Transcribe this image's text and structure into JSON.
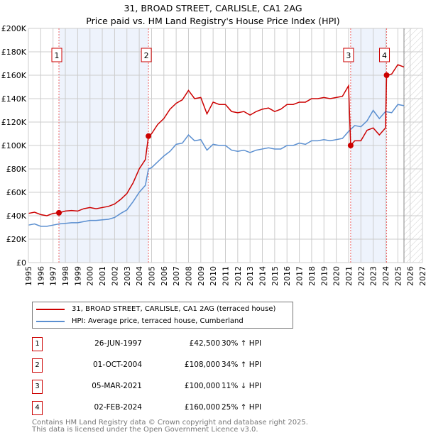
{
  "title": "31, BROAD STREET, CARLISLE, CA1 2AG",
  "subtitle": "Price paid vs. HM Land Registry's House Price Index (HPI)",
  "chart_data": {
    "type": "line",
    "ylim": [
      0,
      200000
    ],
    "xlim": [
      1995,
      2027
    ],
    "yticks": [
      "£0",
      "£20K",
      "£40K",
      "£60K",
      "£80K",
      "£100K",
      "£120K",
      "£140K",
      "£160K",
      "£180K",
      "£200K"
    ],
    "xticks": [
      "1995",
      "1996",
      "1997",
      "1998",
      "1999",
      "2000",
      "2001",
      "2002",
      "2003",
      "2004",
      "2005",
      "2006",
      "2007",
      "2008",
      "2009",
      "2010",
      "2011",
      "2012",
      "2013",
      "2014",
      "2015",
      "2016",
      "2017",
      "2018",
      "2019",
      "2020",
      "2021",
      "2022",
      "2023",
      "2024",
      "2025",
      "2026",
      "2027"
    ],
    "forecast_start": 2025.5,
    "shaded_ranges": [
      [
        1997.48,
        2004.75
      ],
      [
        2021.17,
        2024.09
      ]
    ],
    "series": [
      {
        "name": "31, BROAD STREET, CARLISLE, CA1 2AG (terraced house)",
        "color": "#cc0000",
        "points": [
          [
            1995,
            42
          ],
          [
            1995.5,
            43
          ],
          [
            1996,
            41
          ],
          [
            1996.5,
            40
          ],
          [
            1997,
            42
          ],
          [
            1997.48,
            42.5
          ],
          [
            1998,
            44
          ],
          [
            1998.5,
            44.5
          ],
          [
            1999,
            44
          ],
          [
            1999.5,
            46
          ],
          [
            2000,
            47
          ],
          [
            2000.5,
            46
          ],
          [
            2001,
            47
          ],
          [
            2001.5,
            48
          ],
          [
            2002,
            50
          ],
          [
            2002.5,
            54
          ],
          [
            2003,
            59
          ],
          [
            2003.5,
            68
          ],
          [
            2004,
            80
          ],
          [
            2004.5,
            88
          ],
          [
            2004.75,
            108
          ],
          [
            2005,
            110
          ],
          [
            2005.5,
            118
          ],
          [
            2006,
            123
          ],
          [
            2006.5,
            131
          ],
          [
            2007,
            136
          ],
          [
            2007.5,
            139
          ],
          [
            2008,
            147
          ],
          [
            2008.5,
            140
          ],
          [
            2009,
            141
          ],
          [
            2009.5,
            127
          ],
          [
            2010,
            137
          ],
          [
            2010.5,
            135
          ],
          [
            2011,
            135
          ],
          [
            2011.5,
            129
          ],
          [
            2012,
            128
          ],
          [
            2012.5,
            129
          ],
          [
            2013,
            126
          ],
          [
            2013.5,
            129
          ],
          [
            2014,
            131
          ],
          [
            2014.5,
            132
          ],
          [
            2015,
            129
          ],
          [
            2015.5,
            131
          ],
          [
            2016,
            135
          ],
          [
            2016.5,
            135
          ],
          [
            2017,
            137
          ],
          [
            2017.5,
            137
          ],
          [
            2018,
            140
          ],
          [
            2018.5,
            140
          ],
          [
            2019,
            141
          ],
          [
            2019.5,
            140
          ],
          [
            2020,
            141
          ],
          [
            2020.5,
            142
          ],
          [
            2021,
            151
          ],
          [
            2021.17,
            100
          ],
          [
            2021.5,
            104
          ],
          [
            2022,
            104
          ],
          [
            2022.5,
            113
          ],
          [
            2023,
            115
          ],
          [
            2023.5,
            109
          ],
          [
            2024,
            115
          ],
          [
            2024.09,
            160
          ],
          [
            2024.5,
            161
          ],
          [
            2025,
            169
          ],
          [
            2025.5,
            167
          ]
        ]
      },
      {
        "name": "HPI: Average price, terraced house, Cumberland",
        "color": "#5b8fd0",
        "points": [
          [
            1995,
            32
          ],
          [
            1995.5,
            33
          ],
          [
            1996,
            31
          ],
          [
            1996.5,
            31
          ],
          [
            1997,
            32
          ],
          [
            1997.5,
            33
          ],
          [
            1998,
            33.5
          ],
          [
            1998.5,
            34
          ],
          [
            1999,
            34
          ],
          [
            1999.5,
            35
          ],
          [
            2000,
            36
          ],
          [
            2000.5,
            36
          ],
          [
            2001,
            36.5
          ],
          [
            2001.5,
            37
          ],
          [
            2002,
            38.5
          ],
          [
            2002.5,
            42
          ],
          [
            2003,
            45
          ],
          [
            2003.5,
            52
          ],
          [
            2004,
            60
          ],
          [
            2004.5,
            66
          ],
          [
            2004.75,
            80
          ],
          [
            2005,
            81
          ],
          [
            2005.5,
            86
          ],
          [
            2006,
            91
          ],
          [
            2006.5,
            95
          ],
          [
            2007,
            101
          ],
          [
            2007.5,
            102
          ],
          [
            2008,
            109
          ],
          [
            2008.5,
            104
          ],
          [
            2009,
            105
          ],
          [
            2009.5,
            96
          ],
          [
            2010,
            101
          ],
          [
            2010.5,
            100
          ],
          [
            2011,
            100
          ],
          [
            2011.5,
            96
          ],
          [
            2012,
            95
          ],
          [
            2012.5,
            96
          ],
          [
            2013,
            94
          ],
          [
            2013.5,
            96
          ],
          [
            2014,
            97
          ],
          [
            2014.5,
            98
          ],
          [
            2015,
            97
          ],
          [
            2015.5,
            97
          ],
          [
            2016,
            100
          ],
          [
            2016.5,
            100
          ],
          [
            2017,
            102
          ],
          [
            2017.5,
            101
          ],
          [
            2018,
            104
          ],
          [
            2018.5,
            104
          ],
          [
            2019,
            105
          ],
          [
            2019.5,
            104
          ],
          [
            2020,
            105
          ],
          [
            2020.5,
            106
          ],
          [
            2021,
            112
          ],
          [
            2021.5,
            117
          ],
          [
            2022,
            116
          ],
          [
            2022.5,
            121
          ],
          [
            2023,
            130
          ],
          [
            2023.5,
            123
          ],
          [
            2024,
            129
          ],
          [
            2024.5,
            128
          ],
          [
            2025,
            135
          ],
          [
            2025.5,
            134
          ]
        ]
      }
    ],
    "sales": [
      {
        "label": "1",
        "date": "26-JUN-1997",
        "x": 1997.48,
        "price": "£42,500",
        "value": 42.5,
        "hpi": "30% ↑ HPI"
      },
      {
        "label": "2",
        "date": "01-OCT-2004",
        "x": 2004.75,
        "price": "£108,000",
        "value": 108,
        "hpi": "34% ↑ HPI"
      },
      {
        "label": "3",
        "date": "05-MAR-2021",
        "x": 2021.17,
        "price": "£100,000",
        "value": 100,
        "hpi": "11% ↓ HPI"
      },
      {
        "label": "4",
        "date": "02-FEB-2024",
        "x": 2024.09,
        "price": "£160,000",
        "value": 160,
        "hpi": "25% ↑ HPI"
      }
    ]
  },
  "legend": {
    "property": "31, BROAD STREET, CARLISLE, CA1 2AG (terraced house)",
    "hpi": "HPI: Average price, terraced house, Cumberland"
  },
  "footer": {
    "line1": "Contains HM Land Registry data © Crown copyright and database right 2025.",
    "line2": "This data is licensed under the Open Government Licence v3.0."
  }
}
